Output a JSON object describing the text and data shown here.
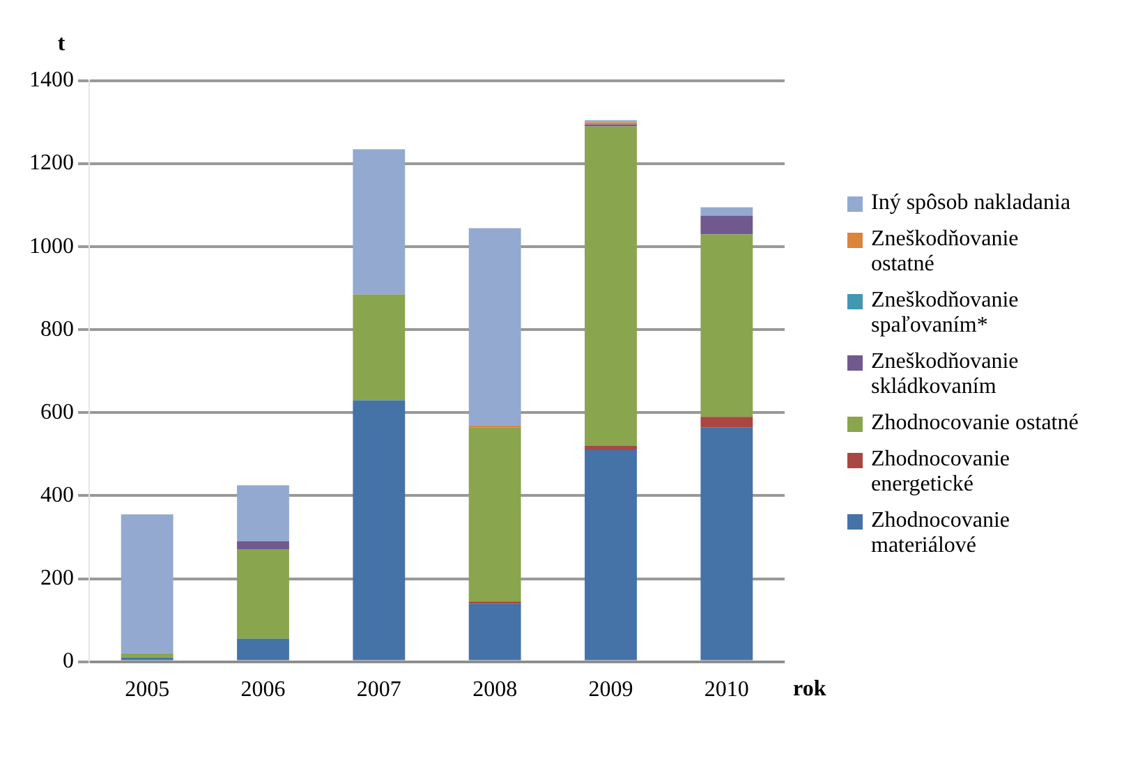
{
  "chart_data": {
    "type": "bar",
    "stacked": true,
    "xlabel": "rok",
    "ylabel": "t",
    "categories": [
      "2005",
      "2006",
      "2007",
      "2008",
      "2009",
      "2010"
    ],
    "series": [
      {
        "name": "Zhodnocovanie materiálové",
        "color": "#4572a7",
        "values": [
          10,
          55,
          630,
          140,
          510,
          565
        ]
      },
      {
        "name": "Zhodnocovanie energetické",
        "color": "#aa4643",
        "values": [
          0,
          0,
          0,
          5,
          10,
          25
        ]
      },
      {
        "name": "Zhodnocovanie ostatné",
        "color": "#89a54e",
        "values": [
          10,
          215,
          255,
          420,
          770,
          440
        ]
      },
      {
        "name": "Zneškodňovanie skládkovaním",
        "color": "#71588f",
        "values": [
          0,
          20,
          0,
          0,
          5,
          45
        ]
      },
      {
        "name": "Zneškodňovanie spaľovaním*",
        "color": "#4198af",
        "values": [
          0,
          0,
          0,
          0,
          0,
          0
        ]
      },
      {
        "name": "Zneškodňovanie ostatné",
        "color": "#db843d",
        "values": [
          0,
          0,
          0,
          5,
          5,
          0
        ]
      },
      {
        "name": "Iný spôsob nakladania",
        "color": "#93a9cf",
        "values": [
          335,
          135,
          350,
          475,
          5,
          20
        ]
      }
    ],
    "ylim": [
      0,
      1400
    ],
    "yticks": [
      0,
      200,
      400,
      600,
      800,
      1000,
      1200,
      1400
    ],
    "grid": "y",
    "legend": "right"
  }
}
